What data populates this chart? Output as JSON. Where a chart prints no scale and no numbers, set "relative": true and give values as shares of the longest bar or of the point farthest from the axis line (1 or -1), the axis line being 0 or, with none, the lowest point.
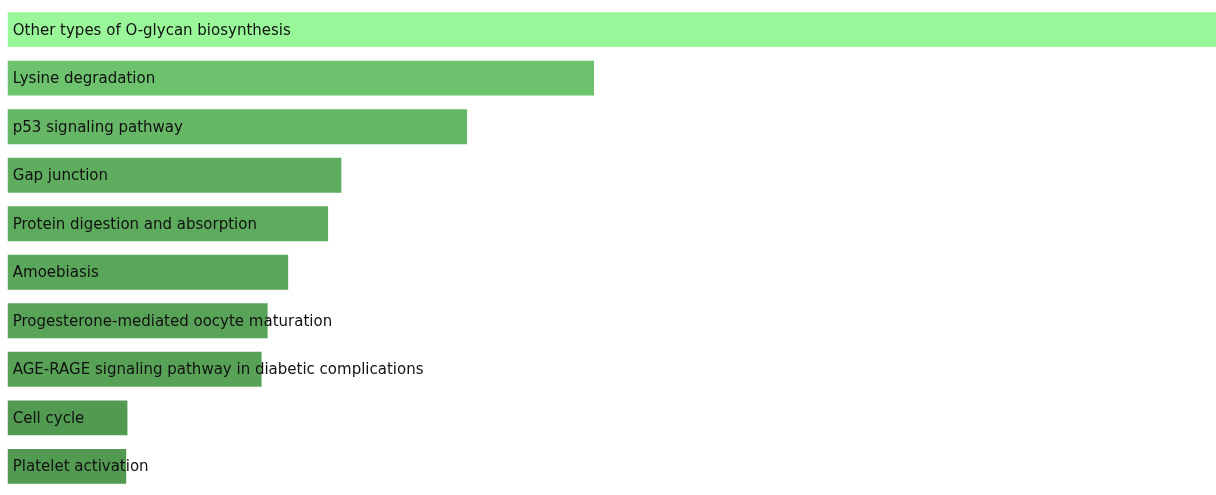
{
  "chart_data": {
    "type": "bar",
    "orientation": "horizontal",
    "relative": true,
    "categories": [
      "Other types of O-glycan biosynthesis",
      "Lysine degradation",
      "p53 signaling pathway",
      "Gap junction",
      "Protein digestion and absorption",
      "Amoebiasis",
      "Progesterone-mediated oocyte maturation",
      "AGE-RAGE signaling pathway in diabetic complications",
      "Cell cycle",
      "Platelet activation"
    ],
    "values": [
      1,
      0.485,
      0.38,
      0.276,
      0.265,
      0.232,
      0.215,
      0.21,
      0.099,
      0.098
    ],
    "colors": [
      "#99f799",
      "#6dc26d",
      "#66b866",
      "#5fae5f",
      "#5dab5d",
      "#5aa65a",
      "#58a358",
      "#57a257",
      "#529a52",
      "#529a52"
    ]
  }
}
